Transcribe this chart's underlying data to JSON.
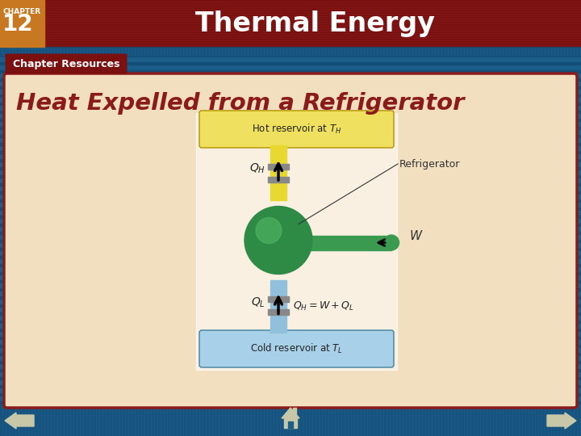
{
  "title": "Thermal Energy",
  "chapter_label": "CHAPTER",
  "chapter_number": "12",
  "subtitle": "Chapter Resources",
  "main_heading": "Heat Expelled from a Refrigerator",
  "bg_color": "#1B5E8A",
  "header_bg": "#8B1A1A",
  "chapter_box_color": "#C87820",
  "subtitle_bg": "#7B1010",
  "content_bg": "#F2DFC0",
  "content_border": "#8B1A1A",
  "hot_res_color": "#F0E060",
  "cold_res_color": "#A8D0E8",
  "green_body": "#2E8B45",
  "green_arm": "#3A9B50",
  "yellow_pipe": "#E8D830",
  "blue_pipe": "#90C0DC",
  "nav_arrow_color": "#C8C8A8"
}
